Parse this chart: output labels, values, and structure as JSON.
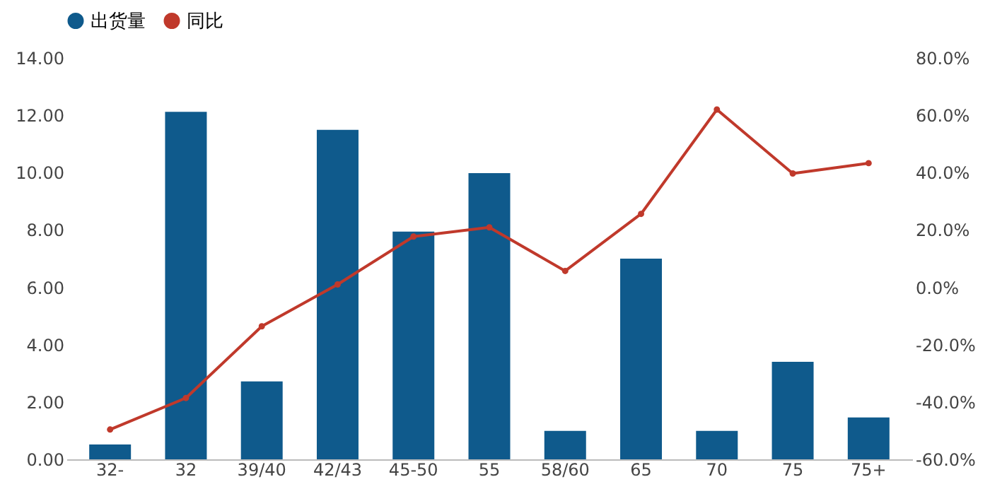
{
  "chart_data": {
    "type": "bar",
    "categories": [
      "32-",
      "32",
      "39/40",
      "42/43",
      "45-50",
      "55",
      "58/60",
      "65",
      "70",
      "75",
      "75+"
    ],
    "series": [
      {
        "name": "出货量",
        "color": "#0f5a8c",
        "values": [
          0.52,
          12.12,
          2.72,
          11.49,
          7.94,
          9.98,
          0.99,
          7.0,
          0.99,
          3.4,
          1.46
        ]
      },
      {
        "name": "同比",
        "type": "line",
        "axis": "y2",
        "color": "#c0392b",
        "marker": "circle",
        "values": [
          -49.6,
          -38.6,
          -13.6,
          1.0,
          17.7,
          20.9,
          5.7,
          25.6,
          62.0,
          39.7,
          43.3
        ]
      }
    ],
    "ylim": [
      0,
      14
    ],
    "yticks": [
      {
        "value": 0,
        "label": "0.00"
      },
      {
        "value": 2,
        "label": "2.00"
      },
      {
        "value": 4,
        "label": "4.00"
      },
      {
        "value": 6,
        "label": "6.00"
      },
      {
        "value": 8,
        "label": "8.00"
      },
      {
        "value": 10,
        "label": "10.00"
      },
      {
        "value": 12,
        "label": "12.00"
      },
      {
        "value": 14,
        "label": "14.00"
      }
    ],
    "y2lim": [
      -60,
      80
    ],
    "y2ticks": [
      {
        "value": -60,
        "label": "-60.0%"
      },
      {
        "value": -40,
        "label": "-40.0%"
      },
      {
        "value": -20,
        "label": "-20.0%"
      },
      {
        "value": 0,
        "label": "0.0%"
      },
      {
        "value": 20,
        "label": "20.0%"
      },
      {
        "value": 40,
        "label": "40.0%"
      },
      {
        "value": 60,
        "label": "60.0%"
      },
      {
        "value": 80,
        "label": "80.0%"
      }
    ],
    "grid": false,
    "legend": "top"
  }
}
